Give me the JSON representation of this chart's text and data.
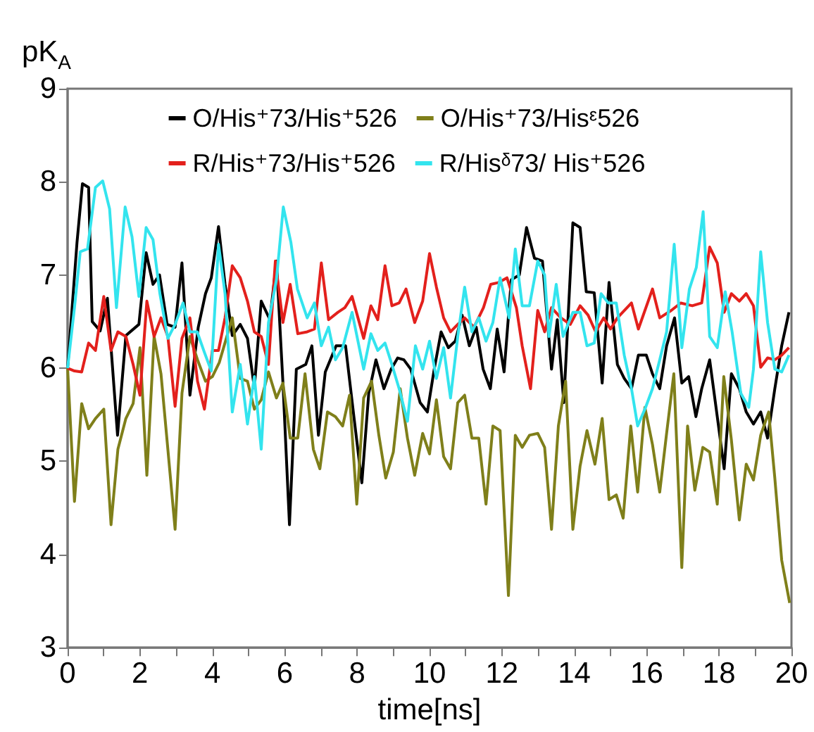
{
  "chart_data": {
    "type": "line",
    "xlabel": "time[ns]",
    "ylabel": "pK$_{A}$",
    "xlim": [
      0,
      20
    ],
    "ylim": [
      3,
      9
    ],
    "xticks": [
      0,
      {
        "value": 1,
        "label": null
      },
      2,
      {
        "value": 3,
        "label": null
      },
      4,
      {
        "value": 5,
        "label": null
      },
      6,
      {
        "value": 7,
        "label": null
      },
      8,
      {
        "value": 9,
        "label": null
      },
      10,
      {
        "value": 11,
        "label": null
      },
      12,
      {
        "value": 13,
        "label": null
      },
      14,
      {
        "value": 15,
        "label": null
      },
      16,
      {
        "value": 17,
        "label": null
      },
      18,
      {
        "value": 19,
        "label": null
      },
      20
    ],
    "yticks": [
      3,
      4,
      5,
      6,
      7,
      8,
      9
    ],
    "grid": false,
    "legend": "top",
    "marker": "none",
    "line_style": "solid",
    "series": [
      {
        "name": "O/His⁺73/His⁺526",
        "color": "#000000",
        "x": [
          0,
          0.26,
          0.41,
          0.58,
          0.68,
          0.9,
          1.1,
          1.38,
          1.61,
          1.97,
          2.17,
          2.36,
          2.54,
          2.75,
          2.97,
          3.16,
          3.38,
          3.61,
          3.81,
          3.97,
          4.17,
          4.35,
          4.55,
          4.77,
          4.97,
          5.16,
          5.35,
          5.59,
          5.77,
          5.95,
          6.13,
          6.32,
          6.58,
          6.75,
          6.93,
          7.12,
          7.42,
          7.68,
          7.91,
          8.13,
          8.32,
          8.52,
          8.74,
          8.94,
          9.12,
          9.29,
          9.48,
          9.74,
          9.94,
          10.13,
          10.32,
          10.52,
          10.71,
          10.9,
          11.1,
          11.29,
          11.48,
          11.68,
          11.87,
          12.06,
          12.26,
          12.48,
          12.68,
          12.9,
          13.12,
          13.37,
          13.53,
          13.71,
          13.96,
          14.16,
          14.33,
          14.55,
          14.77,
          14.96,
          15.19,
          15.38,
          15.58,
          15.77,
          15.99,
          16.16,
          16.36,
          16.55,
          16.77,
          16.97,
          17.16,
          17.36,
          17.52,
          17.74,
          17.95,
          18.14,
          18.34,
          18.56,
          18.75,
          18.95,
          19.15,
          19.34,
          19.54,
          19.73,
          19.93
        ],
        "values": [
          6.0,
          7.35,
          7.98,
          7.94,
          6.5,
          6.4,
          6.75,
          5.28,
          6.35,
          6.47,
          7.24,
          6.9,
          7.0,
          6.47,
          6.44,
          7.13,
          5.71,
          6.44,
          6.8,
          6.97,
          7.52,
          6.9,
          6.35,
          6.47,
          6.32,
          5.79,
          6.72,
          6.52,
          7.15,
          5.84,
          4.32,
          5.99,
          6.04,
          6.24,
          5.28,
          5.96,
          6.24,
          6.24,
          5.48,
          4.77,
          5.73,
          6.09,
          5.78,
          5.99,
          6.11,
          6.09,
          5.99,
          5.63,
          5.53,
          5.99,
          6.39,
          6.22,
          6.29,
          6.57,
          6.24,
          6.44,
          5.99,
          5.78,
          6.42,
          5.96,
          6.95,
          7.0,
          7.51,
          7.18,
          7.15,
          5.99,
          6.52,
          5.63,
          7.56,
          7.51,
          6.82,
          6.81,
          5.84,
          6.92,
          6.04,
          5.89,
          5.78,
          6.14,
          6.14,
          5.94,
          5.78,
          6.24,
          6.54,
          5.84,
          5.91,
          5.48,
          5.78,
          6.09,
          5.48,
          4.92,
          5.94,
          5.78,
          5.53,
          5.4,
          5.53,
          5.25,
          5.78,
          6.24,
          6.6
        ]
      },
      {
        "name": "O/His⁺73/Hisᵋ526",
        "color": "#7f7f1a",
        "x": [
          0,
          0.19,
          0.39,
          0.58,
          0.77,
          1.0,
          1.2,
          1.39,
          1.61,
          1.81,
          2.0,
          2.19,
          2.39,
          2.58,
          2.77,
          2.97,
          3.16,
          3.38,
          3.59,
          3.81,
          4.0,
          4.19,
          4.55,
          4.77,
          4.97,
          5.16,
          5.35,
          5.55,
          5.77,
          5.95,
          6.15,
          6.36,
          6.56,
          6.79,
          6.97,
          7.18,
          7.4,
          7.6,
          7.79,
          7.99,
          8.18,
          8.4,
          8.6,
          8.79,
          9.0,
          9.19,
          9.39,
          9.59,
          9.81,
          10.0,
          10.19,
          10.39,
          10.58,
          10.78,
          10.97,
          11.17,
          11.36,
          11.56,
          11.75,
          11.95,
          12.18,
          12.37,
          12.56,
          12.76,
          12.99,
          13.18,
          13.37,
          13.56,
          13.76,
          13.96,
          14.16,
          14.35,
          14.57,
          14.77,
          14.96,
          15.16,
          15.35,
          15.56,
          15.75,
          15.95,
          16.16,
          16.36,
          16.55,
          16.75,
          16.97,
          17.13,
          17.33,
          17.55,
          17.74,
          17.95,
          18.13,
          18.34,
          18.56,
          18.75,
          18.95,
          19.15,
          19.37,
          19.54,
          19.73,
          19.95
        ],
        "values": [
          6.0,
          4.57,
          5.62,
          5.35,
          5.46,
          5.56,
          4.32,
          5.13,
          5.46,
          5.62,
          6.22,
          4.85,
          6.34,
          5.94,
          5.13,
          4.27,
          5.73,
          6.34,
          6.09,
          5.86,
          5.91,
          6.06,
          6.54,
          5.89,
          5.86,
          5.56,
          5.66,
          5.96,
          5.68,
          5.84,
          5.25,
          5.25,
          5.94,
          5.13,
          4.92,
          5.53,
          5.48,
          5.38,
          5.71,
          4.54,
          5.68,
          5.86,
          5.28,
          4.82,
          5.1,
          5.78,
          5.25,
          4.85,
          5.3,
          5.08,
          5.66,
          5.05,
          4.92,
          5.63,
          5.71,
          5.25,
          5.25,
          4.54,
          5.38,
          5.33,
          3.56,
          5.28,
          5.15,
          5.28,
          5.3,
          5.15,
          4.27,
          5.38,
          5.86,
          4.27,
          4.95,
          5.33,
          4.97,
          5.46,
          4.59,
          4.64,
          4.39,
          5.38,
          4.67,
          5.58,
          5.18,
          4.67,
          5.3,
          5.94,
          3.86,
          5.38,
          4.69,
          5.15,
          5.1,
          4.54,
          5.91,
          5.23,
          4.37,
          4.97,
          4.8,
          5.28,
          5.53,
          4.82,
          3.94,
          3.48
        ]
      },
      {
        "name": "R/His⁺73/His⁺526",
        "color": "#e3201c",
        "x": [
          0,
          0.19,
          0.39,
          0.58,
          0.77,
          1.0,
          1.2,
          1.39,
          1.61,
          1.81,
          2.0,
          2.19,
          2.39,
          2.58,
          2.77,
          2.97,
          3.16,
          3.38,
          3.59,
          3.78,
          4.0,
          4.17,
          4.35,
          4.55,
          4.77,
          4.97,
          5.16,
          5.35,
          5.55,
          5.74,
          5.95,
          6.15,
          6.36,
          6.62,
          6.82,
          7.01,
          7.21,
          7.47,
          7.66,
          7.86,
          8.18,
          8.38,
          8.57,
          8.77,
          8.96,
          9.16,
          9.35,
          9.59,
          9.81,
          10.0,
          10.19,
          10.39,
          10.58,
          10.78,
          10.97,
          11.23,
          11.49,
          11.69,
          11.91,
          12.14,
          12.4,
          12.56,
          12.79,
          12.99,
          13.18,
          13.37,
          13.63,
          13.89,
          14.16,
          14.38,
          14.59,
          14.81,
          15.0,
          15.19,
          15.58,
          15.77,
          16.16,
          16.36,
          16.68,
          16.94,
          17.26,
          17.52,
          17.74,
          17.95,
          18.14,
          18.34,
          18.56,
          18.75,
          18.95,
          19.15,
          19.34,
          19.54,
          19.73,
          19.93
        ],
        "values": [
          6.0,
          5.97,
          5.96,
          6.27,
          6.19,
          6.77,
          6.19,
          6.39,
          6.34,
          6.04,
          5.71,
          6.72,
          6.34,
          6.54,
          6.34,
          5.59,
          6.32,
          6.54,
          5.86,
          5.56,
          6.19,
          6.19,
          6.54,
          7.1,
          6.97,
          6.72,
          6.39,
          6.34,
          6.04,
          7.15,
          6.49,
          6.9,
          6.37,
          6.39,
          6.42,
          7.13,
          6.52,
          6.6,
          6.65,
          6.77,
          6.32,
          6.67,
          6.52,
          7.1,
          6.67,
          6.7,
          6.85,
          6.49,
          6.72,
          7.23,
          6.87,
          6.54,
          6.39,
          6.47,
          6.54,
          6.44,
          6.65,
          6.9,
          6.92,
          6.97,
          6.65,
          6.24,
          5.78,
          6.62,
          6.39,
          6.65,
          6.54,
          6.47,
          6.67,
          6.57,
          6.39,
          6.54,
          6.42,
          6.54,
          6.7,
          6.42,
          6.85,
          6.54,
          6.62,
          6.7,
          6.67,
          6.7,
          7.3,
          7.13,
          6.6,
          6.8,
          6.72,
          6.8,
          6.67,
          6.01,
          6.11,
          6.09,
          6.14,
          6.22
        ]
      },
      {
        "name": "R/Hisᵟ73/ His⁺526",
        "color": "#33e4ee",
        "x": [
          0,
          0.19,
          0.35,
          0.55,
          0.77,
          0.97,
          1.16,
          1.35,
          1.59,
          1.78,
          1.97,
          2.17,
          2.36,
          2.55,
          2.77,
          2.97,
          3.19,
          3.38,
          3.58,
          3.78,
          3.97,
          4.17,
          4.35,
          4.55,
          4.77,
          4.97,
          5.16,
          5.35,
          5.55,
          5.77,
          5.96,
          6.17,
          6.35,
          6.62,
          6.82,
          7.01,
          7.21,
          7.4,
          7.6,
          7.86,
          8.18,
          8.38,
          8.57,
          8.77,
          8.96,
          9.16,
          9.39,
          9.61,
          9.81,
          10.0,
          10.19,
          10.39,
          10.58,
          10.78,
          10.97,
          11.17,
          11.36,
          11.56,
          11.75,
          11.95,
          12.2,
          12.37,
          12.56,
          12.76,
          12.99,
          13.18,
          13.3,
          13.5,
          13.69,
          13.96,
          14.16,
          14.35,
          14.55,
          14.74,
          14.94,
          15.16,
          15.38,
          15.58,
          15.75,
          15.97,
          16.16,
          16.36,
          16.55,
          16.76,
          16.97,
          17.18,
          17.37,
          17.56,
          17.74,
          17.95,
          18.17,
          18.36,
          18.6,
          18.82,
          18.95,
          19.15,
          19.34,
          19.54,
          19.73,
          19.93
        ],
        "values": [
          6.0,
          6.65,
          7.25,
          7.28,
          7.94,
          8.01,
          7.71,
          6.65,
          7.73,
          7.41,
          6.77,
          7.51,
          7.38,
          6.8,
          6.32,
          6.47,
          6.7,
          6.39,
          6.39,
          6.17,
          5.97,
          7.33,
          6.8,
          5.53,
          6.04,
          5.4,
          5.91,
          5.13,
          6.49,
          6.95,
          7.73,
          7.35,
          6.85,
          6.54,
          6.7,
          6.24,
          6.44,
          6.09,
          6.22,
          6.6,
          5.99,
          6.37,
          6.19,
          6.27,
          6.04,
          5.78,
          5.43,
          6.24,
          5.99,
          6.29,
          5.89,
          6.22,
          5.68,
          6.34,
          6.87,
          6.39,
          6.54,
          6.29,
          6.49,
          6.97,
          6.54,
          7.28,
          6.67,
          6.67,
          7.15,
          7.0,
          6.34,
          6.9,
          6.34,
          6.6,
          6.6,
          6.24,
          6.27,
          6.8,
          6.7,
          6.7,
          6.14,
          5.78,
          5.38,
          5.58,
          5.78,
          6.09,
          6.39,
          7.33,
          6.22,
          6.85,
          7.08,
          7.68,
          6.34,
          6.22,
          6.82,
          6.39,
          5.73,
          5.58,
          5.99,
          7.25,
          6.49,
          5.99,
          5.96,
          6.14
        ]
      }
    ]
  }
}
